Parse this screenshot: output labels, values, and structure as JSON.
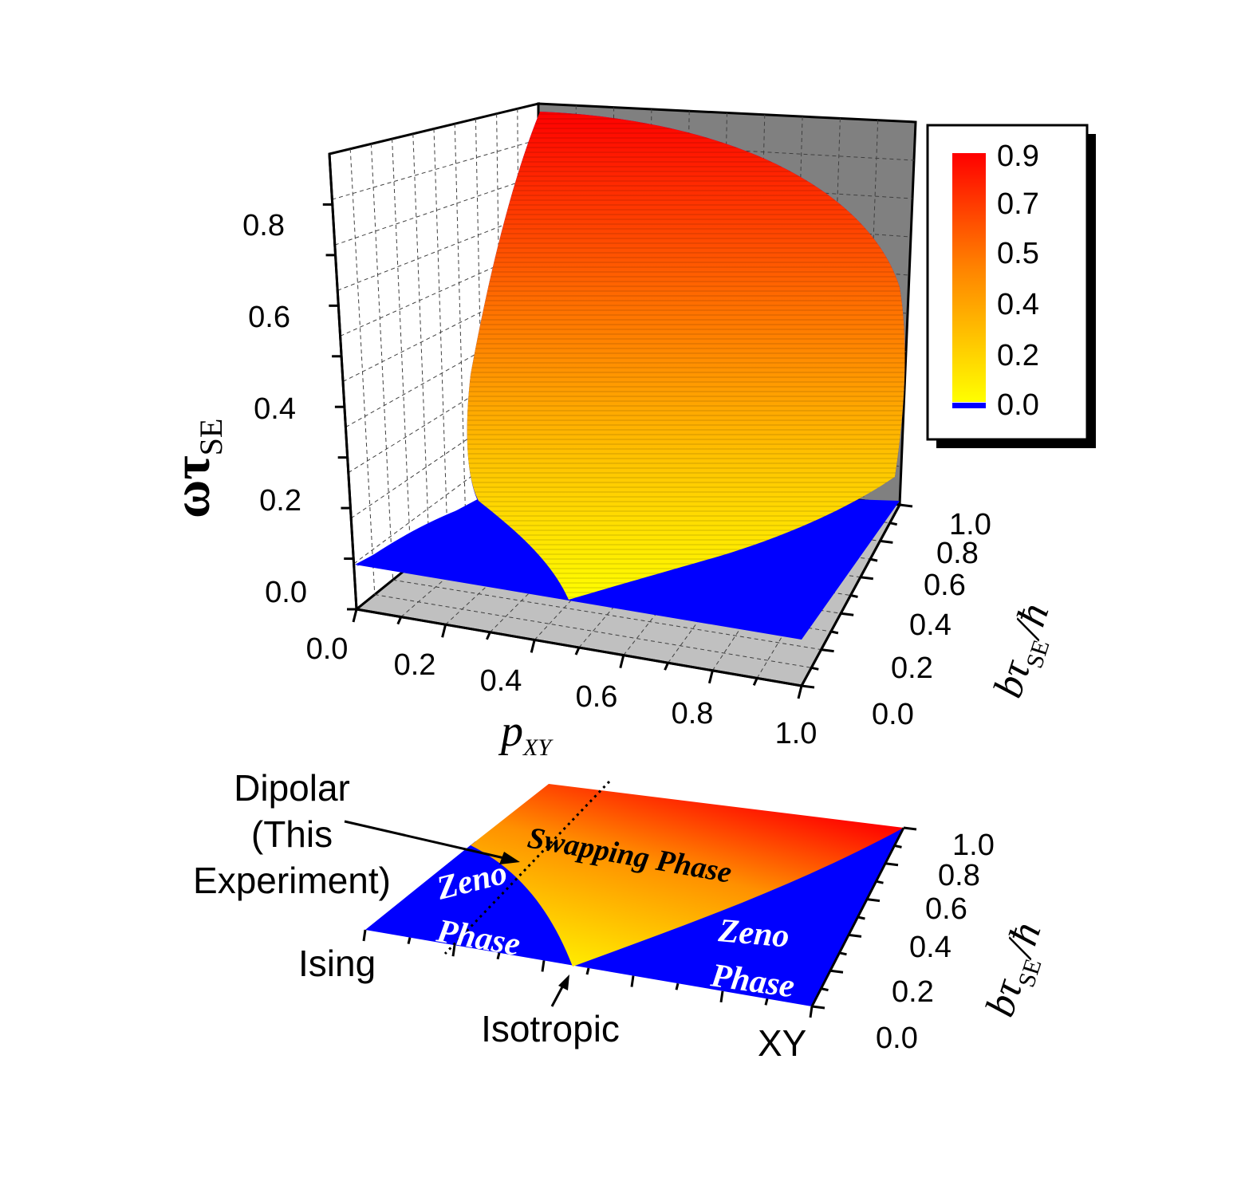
{
  "chart_data": [
    {
      "type": "surface3d",
      "x_label_base": "p",
      "x_label_sub": "XY",
      "y_label_base": "bτ",
      "y_label_sub": "SE",
      "y_label_tail": "/ħ",
      "z_label_base": "ωτ",
      "z_label_sub": "SE",
      "x_ticks": [
        "0.0",
        "0.2",
        "0.4",
        "0.6",
        "0.8",
        "1.0"
      ],
      "y_ticks": [
        "0.0",
        "0.2",
        "0.4",
        "0.6",
        "0.8",
        "1.0"
      ],
      "z_ticks": [
        "0.0",
        "0.2",
        "0.4",
        "0.6",
        "0.8"
      ],
      "xlim": [
        0,
        1
      ],
      "ylim": [
        0,
        1
      ],
      "zlim": [
        0,
        0.9
      ],
      "colorbar": {
        "ticks": [
          "0.9",
          "0.7",
          "0.5",
          "0.4",
          "0.2",
          "0.0"
        ],
        "colors": {
          "high": "#ff0000",
          "mid": "#ffa000",
          "low": "#ffff00",
          "zero": "#0000ff"
        }
      },
      "surface_samples": [
        {
          "p_xy": 0.5,
          "b": 0.0,
          "z": 0.0
        },
        {
          "p_xy": 0.5,
          "b": 0.25,
          "z": 0.15
        },
        {
          "p_xy": 0.5,
          "b": 0.5,
          "z": 0.4
        },
        {
          "p_xy": 0.5,
          "b": 1.0,
          "z": 0.75
        },
        {
          "p_xy": 0.2,
          "b": 1.0,
          "z": 0.85
        },
        {
          "p_xy": 0.9,
          "b": 1.0,
          "z": 0.5
        }
      ]
    },
    {
      "type": "phase_diagram",
      "y_ticks": [
        "0.0",
        "0.2",
        "0.4",
        "0.6",
        "0.8",
        "1.0"
      ],
      "y_label_base": "bτ",
      "y_label_sub": "SE",
      "y_label_tail": "/ħ",
      "x_end_labels": {
        "left": "Ising",
        "right": "XY"
      },
      "regions": [
        "Swapping Phase",
        "Zeno",
        "Phase",
        "Zeno",
        "Phase"
      ],
      "annotations": {
        "dipolar": [
          "Dipolar",
          "(This",
          "Experiment)"
        ],
        "isotropic": "Isotropic"
      }
    }
  ]
}
